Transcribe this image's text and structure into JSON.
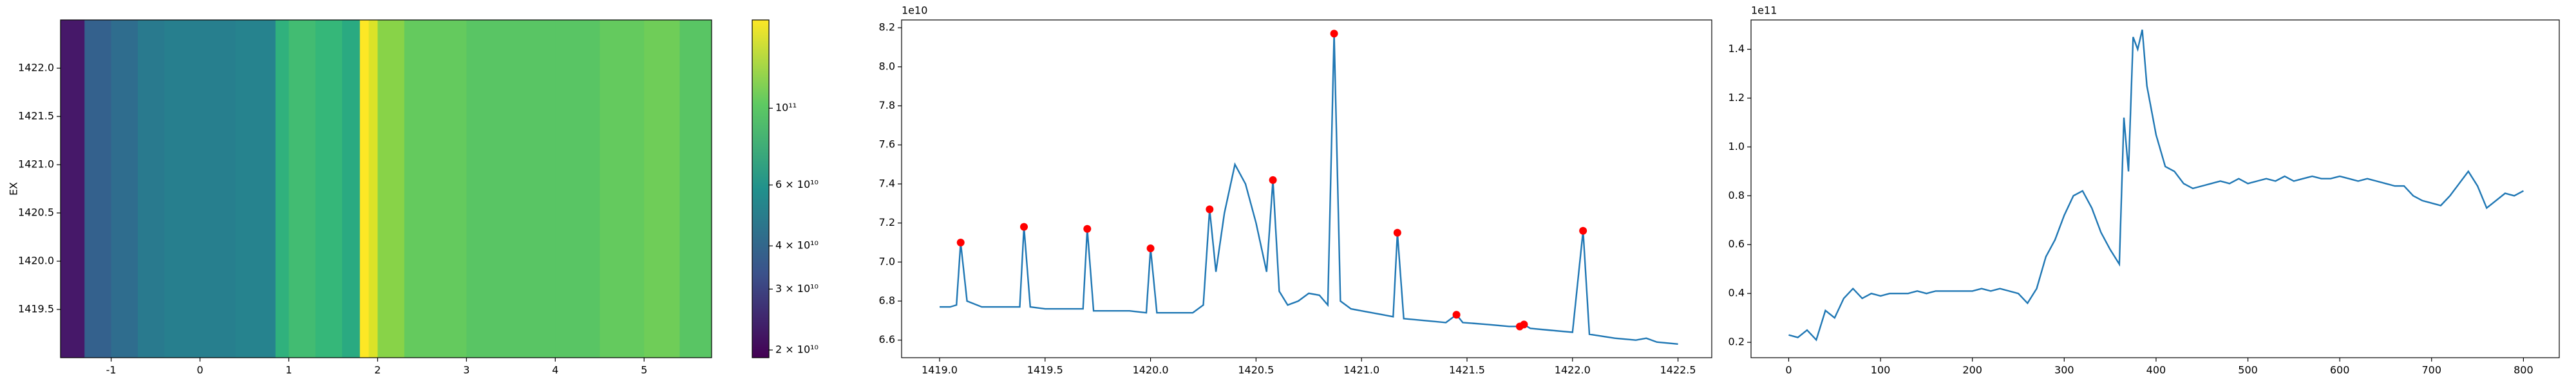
{
  "chart_data": [
    {
      "type": "heatmap",
      "ylabel": "EX",
      "x_edges": [
        -1.57,
        -1.3,
        -1.0,
        -0.7,
        -0.4,
        0,
        0.4,
        0.85,
        1.0,
        1.3,
        1.6,
        1.8,
        1.9,
        2.0,
        2.3,
        3,
        4,
        4.5,
        5,
        5.4,
        5.76
      ],
      "values": [
        22000000000.0,
        38000000000.0,
        42000000000.0,
        48000000000.0,
        50000000000.0,
        50000000000.0,
        52000000000.0,
        80000000000.0,
        90000000000.0,
        85000000000.0,
        75000000000.0,
        180000000000.0,
        160000000000.0,
        120000000000.0,
        105000000000.0,
        100000000000.0,
        100000000000.0,
        105000000000.0,
        110000000000.0,
        100000000000.0
      ],
      "xlim": [
        -1.57,
        5.76
      ],
      "ylim": [
        1419.0,
        1422.5
      ],
      "xticks": [
        -1,
        0,
        1,
        2,
        3,
        4,
        5
      ],
      "yticks": [
        1419.5,
        {
          "value": 1420,
          "label": "1420.0"
        },
        1420.5,
        {
          "value": 1421,
          "label": "1421.0"
        },
        1421.5,
        {
          "value": 1422,
          "label": "1422.0"
        }
      ],
      "colormap": "viridis",
      "colorbar": {
        "log": true,
        "lim": [
          19000000000.0,
          180000000000.0
        ],
        "ticks": [
          {
            "value": 20000000000.0,
            "label": "2 × 10¹⁰"
          },
          {
            "value": 30000000000.0,
            "label": "3 × 10¹⁰"
          },
          {
            "value": 40000000000.0,
            "label": "4 × 10¹⁰"
          },
          {
            "value": 60000000000.0,
            "label": "6 × 10¹⁰"
          },
          {
            "value": 100000000000.0,
            "label": "10¹¹"
          }
        ]
      }
    },
    {
      "type": "line",
      "offset_label": "1e10",
      "color": "#1f77b4",
      "x": [
        1419.0,
        1419.05,
        1419.08,
        1419.1,
        1419.13,
        1419.2,
        1419.3,
        1419.38,
        1419.4,
        1419.43,
        1419.5,
        1419.6,
        1419.68,
        1419.7,
        1419.73,
        1419.8,
        1419.9,
        1419.98,
        1420.0,
        1420.03,
        1420.1,
        1420.2,
        1420.25,
        1420.28,
        1420.31,
        1420.35,
        1420.4,
        1420.45,
        1420.5,
        1420.55,
        1420.58,
        1420.61,
        1420.65,
        1420.7,
        1420.75,
        1420.8,
        1420.84,
        1420.87,
        1420.9,
        1420.95,
        1421.0,
        1421.1,
        1421.15,
        1421.17,
        1421.2,
        1421.3,
        1421.4,
        1421.45,
        1421.48,
        1421.6,
        1421.7,
        1421.75,
        1421.77,
        1421.8,
        1421.9,
        1422.0,
        1422.05,
        1422.08,
        1422.2,
        1422.3,
        1422.35,
        1422.4,
        1422.5
      ],
      "values": [
        6.77,
        6.77,
        6.78,
        7.1,
        6.8,
        6.77,
        6.77,
        6.77,
        7.18,
        6.77,
        6.76,
        6.76,
        6.76,
        7.17,
        6.75,
        6.75,
        6.75,
        6.74,
        7.07,
        6.74,
        6.74,
        6.74,
        6.78,
        7.27,
        6.95,
        7.25,
        7.5,
        7.4,
        7.2,
        6.95,
        7.42,
        6.85,
        6.78,
        6.8,
        6.84,
        6.83,
        6.78,
        8.17,
        6.8,
        6.76,
        6.75,
        6.73,
        6.72,
        7.15,
        6.71,
        6.7,
        6.69,
        6.73,
        6.69,
        6.68,
        6.67,
        6.67,
        6.68,
        6.66,
        6.65,
        6.64,
        7.16,
        6.63,
        6.61,
        6.6,
        6.61,
        6.59,
        6.58
      ],
      "peaks": {
        "color": "#ff0000",
        "x": [
          1419.1,
          1419.4,
          1419.7,
          1420.0,
          1420.28,
          1420.58,
          1420.87,
          1421.17,
          1421.45,
          1421.75,
          1421.77,
          1422.05
        ],
        "values": [
          7.1,
          7.18,
          7.17,
          7.07,
          7.27,
          7.42,
          8.17,
          7.15,
          6.73,
          6.67,
          6.68,
          7.16
        ]
      },
      "xlim": [
        1418.82,
        1422.66
      ],
      "ylim": [
        6.51,
        8.24
      ],
      "xticks": [
        {
          "value": 1419,
          "label": "1419.0"
        },
        1419.5,
        {
          "value": 1420,
          "label": "1420.0"
        },
        1420.5,
        {
          "value": 1421,
          "label": "1421.0"
        },
        1421.5,
        {
          "value": 1422,
          "label": "1422.0"
        },
        1422.5
      ],
      "yticks": [
        6.6,
        6.8,
        {
          "value": 7,
          "label": "7.0"
        },
        7.2,
        7.4,
        7.6,
        7.8,
        {
          "value": 8,
          "label": "8.0"
        },
        8.2
      ]
    },
    {
      "type": "line",
      "offset_label": "1e11",
      "color": "#1f77b4",
      "x": [
        0,
        10,
        20,
        30,
        40,
        50,
        60,
        70,
        80,
        90,
        100,
        110,
        120,
        130,
        140,
        150,
        160,
        170,
        180,
        190,
        200,
        210,
        220,
        230,
        240,
        250,
        260,
        270,
        280,
        290,
        300,
        310,
        320,
        330,
        340,
        350,
        360,
        365,
        370,
        375,
        380,
        385,
        390,
        400,
        410,
        420,
        430,
        440,
        450,
        460,
        470,
        480,
        490,
        500,
        510,
        520,
        530,
        540,
        550,
        560,
        570,
        580,
        590,
        600,
        610,
        620,
        630,
        640,
        650,
        660,
        670,
        680,
        690,
        700,
        710,
        720,
        730,
        740,
        750,
        760,
        770,
        780,
        790,
        800
      ],
      "values": [
        0.23,
        0.22,
        0.25,
        0.21,
        0.33,
        0.3,
        0.38,
        0.42,
        0.38,
        0.4,
        0.39,
        0.4,
        0.4,
        0.4,
        0.41,
        0.4,
        0.41,
        0.41,
        0.41,
        0.41,
        0.41,
        0.42,
        0.41,
        0.42,
        0.41,
        0.4,
        0.36,
        0.42,
        0.55,
        0.62,
        0.72,
        0.8,
        0.82,
        0.75,
        0.65,
        0.58,
        0.52,
        1.12,
        0.9,
        1.45,
        1.4,
        1.48,
        1.25,
        1.05,
        0.92,
        0.9,
        0.85,
        0.83,
        0.84,
        0.85,
        0.86,
        0.85,
        0.87,
        0.85,
        0.86,
        0.87,
        0.86,
        0.88,
        0.86,
        0.87,
        0.88,
        0.87,
        0.87,
        0.88,
        0.87,
        0.86,
        0.87,
        0.86,
        0.85,
        0.84,
        0.84,
        0.8,
        0.78,
        0.77,
        0.76,
        0.8,
        0.85,
        0.9,
        0.84,
        0.75,
        0.78,
        0.81,
        0.8,
        0.82
      ],
      "xlim": [
        -41,
        839
      ],
      "ylim": [
        0.137,
        1.52
      ],
      "xticks": [
        0,
        100,
        200,
        300,
        400,
        500,
        600,
        700,
        800
      ],
      "yticks": [
        0.2,
        0.4,
        0.6,
        0.8,
        {
          "value": 1,
          "label": "1.0"
        },
        1.2,
        1.4
      ]
    }
  ]
}
